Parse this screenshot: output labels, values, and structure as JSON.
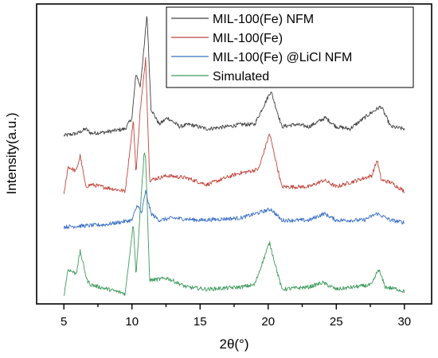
{
  "chart_data": {
    "type": "line",
    "xlabel": "2θ(°)",
    "ylabel": "Intensity(a.u.)",
    "xlim": [
      3.0,
      32.0
    ],
    "xticks": [
      5,
      10,
      15,
      20,
      25,
      30
    ],
    "x_tick_labels": [
      "5",
      "10",
      "15",
      "20",
      "25",
      "30"
    ],
    "y_ticks_shown": false,
    "grid": false,
    "legend_position": "top-right",
    "series": [
      {
        "name": "MIL-100(Fe) NFM",
        "color": "#404040",
        "baseline": 0.72,
        "x": [
          5.0,
          6.0,
          6.6,
          7.0,
          8.0,
          9.5,
          10.0,
          10.3,
          10.6,
          10.9,
          11.1,
          11.4,
          12.0,
          12.6,
          13.5,
          14.2,
          15.5,
          17.0,
          18.0,
          19.0,
          20.2,
          21.0,
          22.0,
          23.0,
          24.2,
          25.0,
          26.0,
          27.5,
          28.0,
          28.3,
          29.0,
          30.0
        ],
        "values": [
          0.0,
          0.01,
          0.03,
          0.01,
          0.015,
          0.03,
          0.08,
          0.28,
          0.22,
          0.4,
          0.55,
          0.12,
          0.05,
          0.08,
          0.04,
          0.05,
          0.03,
          0.04,
          0.05,
          0.05,
          0.2,
          0.04,
          0.05,
          0.04,
          0.08,
          0.04,
          0.03,
          0.1,
          0.12,
          0.13,
          0.04,
          0.03
        ]
      },
      {
        "name": "MIL-100(Fe)",
        "color": "#c0463c",
        "baseline": 0.45,
        "x": [
          5.0,
          5.3,
          5.9,
          6.2,
          6.6,
          7.0,
          9.5,
          10.1,
          10.3,
          10.6,
          10.9,
          11.0,
          11.3,
          12.6,
          14.0,
          15.5,
          17.8,
          18.7,
          19.3,
          20.1,
          21.0,
          23.0,
          24.1,
          25.0,
          27.6,
          28.0,
          28.3,
          29.0,
          30.0
        ],
        "values": [
          0.0,
          0.13,
          0.11,
          0.18,
          0.04,
          0.05,
          0.02,
          0.34,
          0.1,
          0.38,
          0.55,
          0.62,
          0.07,
          0.09,
          0.08,
          0.05,
          0.1,
          0.11,
          0.12,
          0.28,
          0.04,
          0.04,
          0.07,
          0.04,
          0.09,
          0.16,
          0.07,
          0.06,
          0.02
        ]
      },
      {
        "name": "MIL-100(Fe) @LiCl NFM",
        "color": "#3a6fc4",
        "baseline": 0.31,
        "x": [
          5.0,
          8.0,
          10.0,
          10.4,
          10.7,
          11.0,
          11.4,
          12.0,
          13.0,
          15.0,
          18.0,
          20.2,
          21.0,
          23.0,
          24.1,
          25.0,
          27.0,
          28.0,
          29.0,
          30.0
        ],
        "values": [
          0.0,
          0.01,
          0.03,
          0.1,
          0.06,
          0.16,
          0.06,
          0.03,
          0.04,
          0.03,
          0.04,
          0.08,
          0.03,
          0.03,
          0.06,
          0.03,
          0.03,
          0.06,
          0.03,
          0.02
        ]
      },
      {
        "name": "Simulated",
        "color": "#3e9a5c",
        "baseline": 0.0,
        "x": [
          5.0,
          5.3,
          5.9,
          6.2,
          6.7,
          7.0,
          9.5,
          10.1,
          10.3,
          10.6,
          10.9,
          11.0,
          11.3,
          12.6,
          14.0,
          15.5,
          18.0,
          19.0,
          20.1,
          21.0,
          23.0,
          24.0,
          25.0,
          27.6,
          28.1,
          28.6,
          29.5,
          30.0
        ],
        "values": [
          0.0,
          0.12,
          0.1,
          0.2,
          0.07,
          0.05,
          0.01,
          0.33,
          0.09,
          0.38,
          0.65,
          0.62,
          0.07,
          0.08,
          0.04,
          0.03,
          0.04,
          0.05,
          0.24,
          0.03,
          0.04,
          0.06,
          0.03,
          0.05,
          0.12,
          0.04,
          0.03,
          0.02
        ]
      }
    ]
  }
}
